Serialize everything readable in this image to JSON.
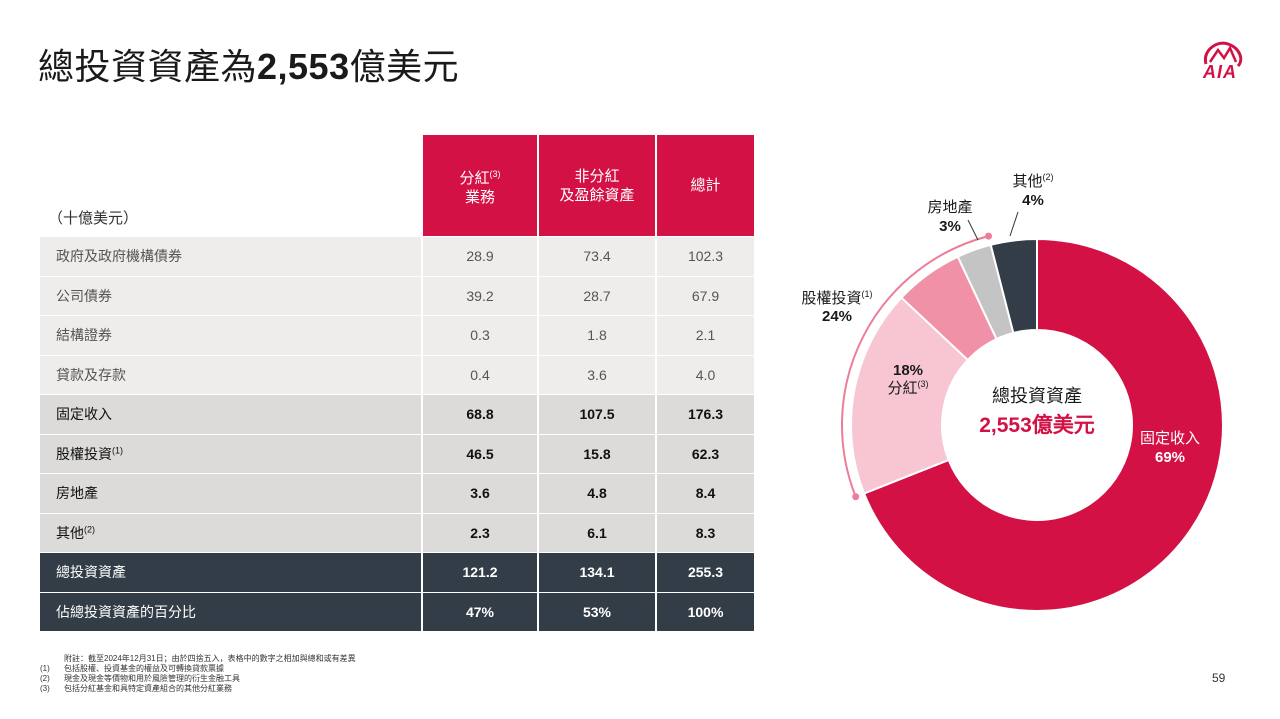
{
  "title": {
    "prefix": "總投資資產為",
    "amount": "2,553",
    "suffix": "億美元"
  },
  "logo": {
    "text": "AIA"
  },
  "table": {
    "unit_label": "（十億美元）",
    "columns": [
      {
        "line1": "分紅",
        "sup": "(3)",
        "line2": "業務"
      },
      {
        "line1": "非分紅",
        "sup": "",
        "line2": "及盈餘資產"
      },
      {
        "line1": "總計",
        "sup": "",
        "line2": ""
      }
    ],
    "rows": [
      {
        "label": "政府及政府機構債券",
        "sup": "",
        "v": [
          "28.9",
          "73.4",
          "102.3"
        ],
        "style": "light"
      },
      {
        "label": "公司債券",
        "sup": "",
        "v": [
          "39.2",
          "28.7",
          "67.9"
        ],
        "style": "light"
      },
      {
        "label": "結構證券",
        "sup": "",
        "v": [
          "0.3",
          "1.8",
          "2.1"
        ],
        "style": "light"
      },
      {
        "label": "貸款及存款",
        "sup": "",
        "v": [
          "0.4",
          "3.6",
          "4.0"
        ],
        "style": "light"
      },
      {
        "label": "固定收入",
        "sup": "",
        "v": [
          "68.8",
          "107.5",
          "176.3"
        ],
        "style": "mid"
      },
      {
        "label": "股權投資",
        "sup": "(1)",
        "v": [
          "46.5",
          "15.8",
          "62.3"
        ],
        "style": "mid"
      },
      {
        "label": "房地產",
        "sup": "",
        "v": [
          "3.6",
          "4.8",
          "8.4"
        ],
        "style": "mid"
      },
      {
        "label": "其他",
        "sup": "(2)",
        "v": [
          "2.3",
          "6.1",
          "8.3"
        ],
        "style": "mid"
      },
      {
        "label": "總投資資產",
        "sup": "",
        "v": [
          "121.2",
          "134.1",
          "255.3"
        ],
        "style": "dark"
      },
      {
        "label": "佔總投資資產的百分比",
        "sup": "",
        "v": [
          "47%",
          "53%",
          "100%"
        ],
        "style": "dark"
      }
    ]
  },
  "chart_data": {
    "type": "pie",
    "center_label": "總投資資產",
    "center_value": "2,553億美元",
    "slices": [
      {
        "name": "固定收入",
        "sup": "",
        "value": 69,
        "label": "69%",
        "color": "#d31145"
      },
      {
        "name": "股權投資",
        "sup": "(1)",
        "value": 24,
        "label": "24%",
        "color": "#f191a8"
      },
      {
        "name": "房地產",
        "sup": "",
        "value": 3,
        "label": "3%",
        "color": "#c4c4c4"
      },
      {
        "name": "其他",
        "sup": "(2)",
        "value": 4,
        "label": "4%",
        "color": "#333d47"
      }
    ],
    "sub_slice": {
      "name": "分紅",
      "sup": "(3)",
      "value": 18,
      "label": "18%",
      "color": "#f7c6d2"
    }
  },
  "notes": [
    {
      "k": "",
      "text": "附註：截至2024年12月31日；由於四捨五入，表格中的數字之相加與總和或有差異"
    },
    {
      "k": "(1)",
      "text": "包括股權、投資基金的權益及可轉換貸款票據"
    },
    {
      "k": "(2)",
      "text": "現金及現金等價物和用於風險管理的衍生金融工具"
    },
    {
      "k": "(3)",
      "text": "包括分紅基金和具特定資產組合的其他分紅業務"
    }
  ],
  "page_number": "59"
}
